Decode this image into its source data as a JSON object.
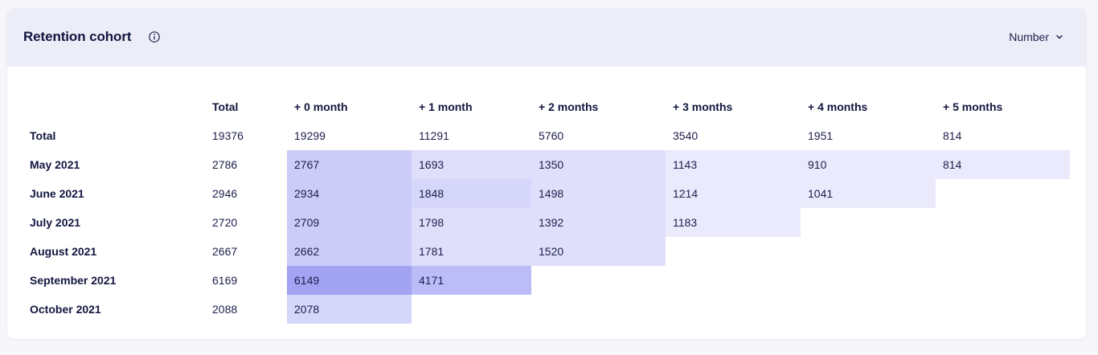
{
  "header": {
    "title": "Retention cohort",
    "info_icon": "info-circle-icon",
    "mode_label": "Number",
    "mode_icon": "chevron-down-icon"
  },
  "colors": {
    "header_bg": "#ededf8",
    "heat_scale": [
      "#ebeafc",
      "#e0dffb",
      "#d6d5fa",
      "#ccccf9",
      "#bcbcf8",
      "#a3a3f3"
    ]
  },
  "table": {
    "columns": [
      "Total",
      "+ 0 month",
      "+ 1 month",
      "+ 2 months",
      "+ 3 months",
      "+ 4 months",
      "+ 5 months"
    ],
    "total_row": {
      "label": "Total",
      "total": "19376",
      "values": [
        "19299",
        "11291",
        "5760",
        "3540",
        "1951",
        "814"
      ]
    },
    "rows": [
      {
        "label": "May 2021",
        "total": "2786",
        "values": [
          "2767",
          "1693",
          "1350",
          "1143",
          "910",
          "814"
        ],
        "shades": [
          3,
          1,
          1,
          0,
          0,
          0
        ]
      },
      {
        "label": "June 2021",
        "total": "2946",
        "values": [
          "2934",
          "1848",
          "1498",
          "1214",
          "1041"
        ],
        "shades": [
          3,
          2,
          1,
          0,
          0
        ]
      },
      {
        "label": "July 2021",
        "total": "2720",
        "values": [
          "2709",
          "1798",
          "1392",
          "1183"
        ],
        "shades": [
          3,
          1,
          1,
          0
        ]
      },
      {
        "label": "August 2021",
        "total": "2667",
        "values": [
          "2662",
          "1781",
          "1520"
        ],
        "shades": [
          3,
          1,
          1
        ]
      },
      {
        "label": "September 2021",
        "total": "6169",
        "values": [
          "6149",
          "4171"
        ],
        "shades": [
          5,
          4
        ]
      },
      {
        "label": "October 2021",
        "total": "2088",
        "values": [
          "2078"
        ],
        "shades": [
          2
        ]
      }
    ]
  }
}
